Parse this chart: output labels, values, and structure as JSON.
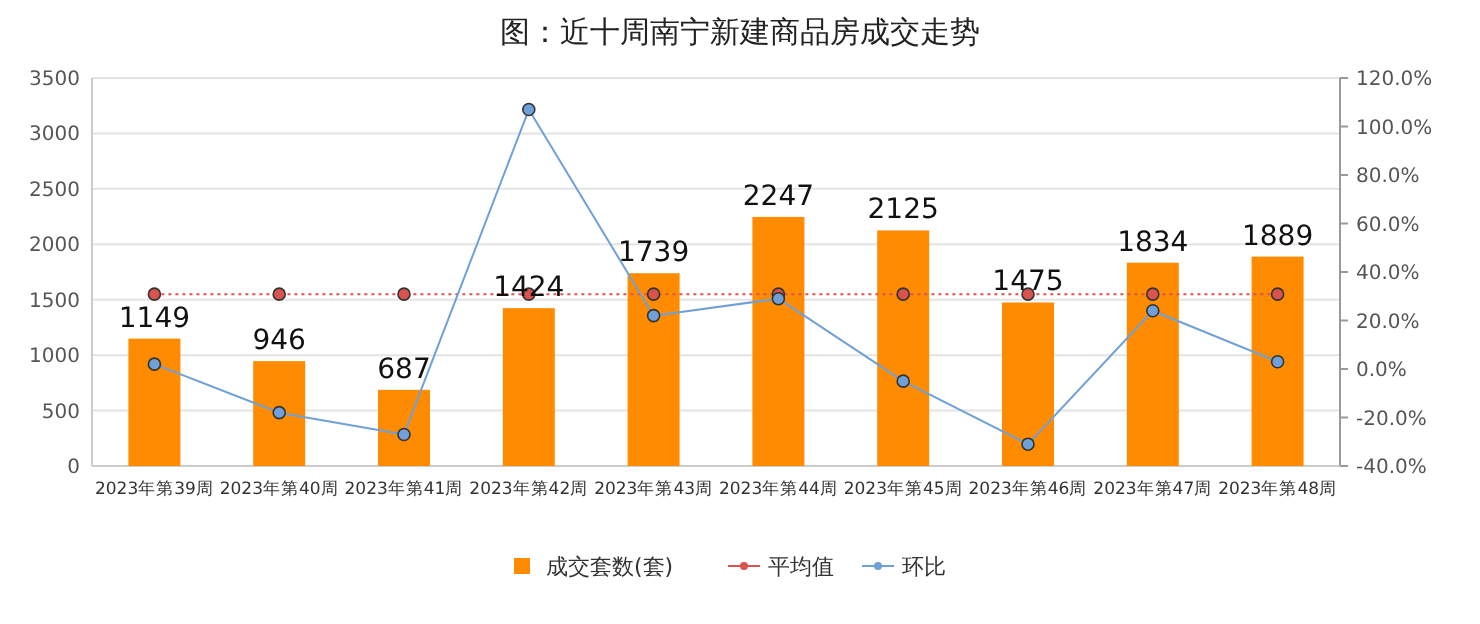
{
  "chart_data": {
    "type": "bar",
    "title": "图：近十周南宁新建商品房成交走势",
    "categories": [
      "2023年第39周",
      "2023年第40周",
      "2023年第41周",
      "2023年第42周",
      "2023年第43周",
      "2023年第44周",
      "2023年第45周",
      "2023年第46周",
      "2023年第47周",
      "2023年第48周"
    ],
    "series": [
      {
        "name": "成交套数(套)",
        "color": "#ff8c00",
        "values": [
          1149,
          946,
          687,
          1424,
          1739,
          2247,
          2125,
          1475,
          1834,
          1889
        ],
        "value_labels": [
          "1149",
          "946",
          "687",
          "1424",
          "1739",
          "2247",
          "2125",
          "1475",
          "1834",
          "1889"
        ]
      },
      {
        "name": "平均值",
        "type": "line",
        "color": "#d9534f",
        "line_style": "dotted",
        "marker": "circle",
        "values": [
          1550,
          1550,
          1550,
          1550,
          1550,
          1550,
          1550,
          1550,
          1550,
          1550
        ]
      },
      {
        "name": "环比",
        "type": "line",
        "axis": "y2",
        "color": "#6fa0d8",
        "line_style": "solid",
        "marker": "circle",
        "values": [
          2,
          -18,
          -27,
          107,
          22,
          29,
          -5,
          -31,
          24,
          3
        ]
      }
    ],
    "ylim": [
      0,
      3500
    ],
    "yticks": [
      0,
      500,
      1000,
      1500,
      2000,
      2500,
      3000,
      3500
    ],
    "y2lim": [
      -40,
      120
    ],
    "y2ticks": [
      {
        "value": -40,
        "label": "-40.0%"
      },
      {
        "value": -20,
        "label": "-20.0%"
      },
      {
        "value": 0,
        "label": "0.0%"
      },
      {
        "value": 20,
        "label": "20.0%"
      },
      {
        "value": 40,
        "label": "40.0%"
      },
      {
        "value": 60,
        "label": "60.0%"
      },
      {
        "value": 80,
        "label": "80.0%"
      },
      {
        "value": 100,
        "label": "100.0%"
      },
      {
        "value": 120,
        "label": "120.0%"
      }
    ],
    "grid": "y",
    "legend": "bottom"
  }
}
